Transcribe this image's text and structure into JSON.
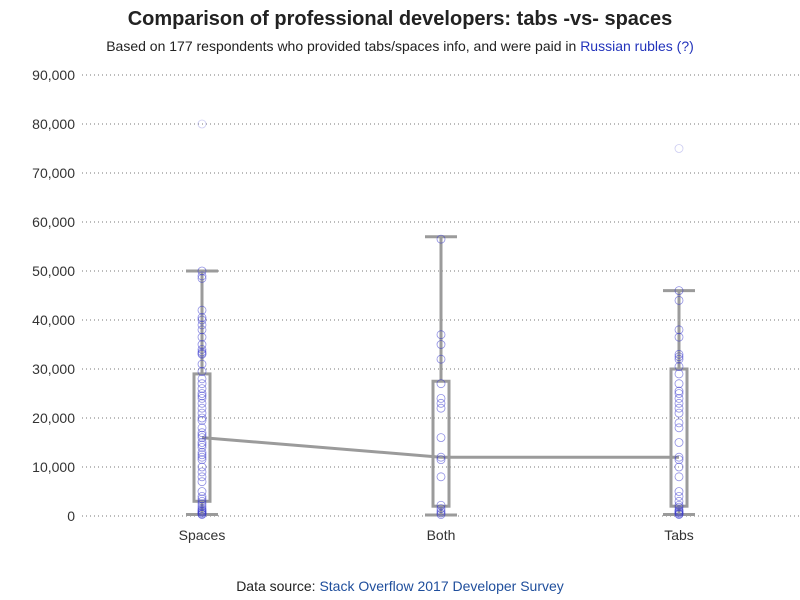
{
  "colors": {
    "text": "#222222",
    "link": "#2233bb",
    "box": "#9b9b9b",
    "point": "#3333cc",
    "grid": "#777777"
  },
  "header": {
    "title": "Comparison of professional developers: tabs -vs- spaces",
    "subtitle_prefix": "Based on 177 respondents who provided tabs/spaces info, and were paid in ",
    "subtitle_link": "Russian rubles (?)"
  },
  "footer": {
    "prefix": "Data source: ",
    "link": "Stack Overflow 2017 Developer Survey"
  },
  "chart_data": {
    "type": "box",
    "title": "Comparison of professional developers: tabs -vs- spaces",
    "ylim": [
      0,
      90000
    ],
    "yticks": [
      0,
      10000,
      20000,
      30000,
      40000,
      50000,
      60000,
      70000,
      80000,
      90000
    ],
    "ytick_labels": [
      "0",
      "10,000",
      "20,000",
      "30,000",
      "40,000",
      "50,000",
      "60,000",
      "70,000",
      "80,000",
      "90,000"
    ],
    "grid": true,
    "categories": [
      "Spaces",
      "Both",
      "Tabs"
    ],
    "boxes": [
      {
        "category": "Spaces",
        "min": 300,
        "q1": 3000,
        "median": 16000,
        "q3": 29000,
        "max": 50000
      },
      {
        "category": "Both",
        "min": 200,
        "q1": 2000,
        "median": 12000,
        "q3": 27500,
        "max": 57000
      },
      {
        "category": "Tabs",
        "min": 300,
        "q1": 2000,
        "median": 12000,
        "q3": 30000,
        "max": 46000
      }
    ],
    "points": [
      {
        "category": "Spaces",
        "values": [
          50000,
          49000,
          48500,
          42000,
          40500,
          40000,
          39000,
          38000,
          36500,
          35000,
          34000,
          33500,
          33200,
          33000,
          31000,
          29500,
          28000,
          27000,
          26000,
          25000,
          24500,
          24000,
          23000,
          22000,
          21000,
          20000,
          19500,
          18000,
          17000,
          16500,
          16000,
          15000,
          14500,
          14000,
          13000,
          12500,
          12000,
          11500,
          10000,
          9000,
          8000,
          7000,
          5000,
          4000,
          3500,
          3000,
          2500,
          2000,
          1500,
          1200,
          1000,
          800,
          600,
          400,
          300,
          80000
        ]
      },
      {
        "category": "Both",
        "values": [
          56500,
          37000,
          35000,
          32000,
          27000,
          24000,
          23000,
          22000,
          16000,
          12000,
          11500,
          8000,
          2200,
          1500,
          1000,
          600,
          300
        ]
      },
      {
        "category": "Tabs",
        "values": [
          46000,
          44000,
          38000,
          36500,
          33000,
          32500,
          32000,
          30500,
          29000,
          27000,
          25500,
          25000,
          24000,
          23000,
          22000,
          21000,
          19000,
          18000,
          15000,
          12000,
          11500,
          10000,
          8000,
          5000,
          4000,
          3000,
          2200,
          1800,
          1200,
          1000,
          800,
          600,
          400,
          300,
          75000
        ]
      }
    ],
    "median_line": true
  }
}
